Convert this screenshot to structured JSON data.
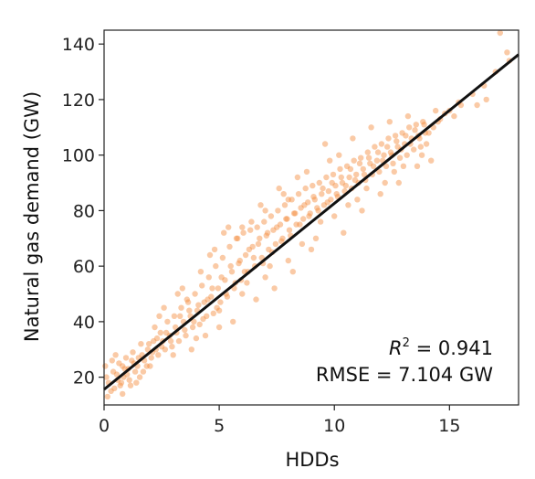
{
  "chart_data": {
    "type": "scatter",
    "title": "",
    "xlabel": "HDDs",
    "ylabel": "Natural gas demand (GW)",
    "xlim": [
      0,
      18
    ],
    "ylim": [
      10,
      145
    ],
    "x_ticks": [
      0,
      5,
      10,
      15
    ],
    "y_ticks": [
      20,
      40,
      60,
      80,
      100,
      120,
      140
    ],
    "grid": false,
    "legend": "none",
    "point_color": "#f5893a",
    "line_color": "#111111",
    "fit_line": {
      "slope": 6.7,
      "intercept": 15.6
    },
    "annotations": {
      "r2_symbol": "R",
      "r2_superscript": "2",
      "r2_value": " = 0.941",
      "rmse": "RMSE = 7.104 GW"
    },
    "points": [
      [
        0.2,
        18
      ],
      [
        0.4,
        22
      ],
      [
        0.6,
        19
      ],
      [
        0.8,
        24
      ],
      [
        1.0,
        21
      ],
      [
        1.2,
        26
      ],
      [
        0.3,
        15
      ],
      [
        0.5,
        28
      ],
      [
        0.1,
        20
      ],
      [
        0.7,
        17
      ],
      [
        0.9,
        23
      ],
      [
        1.1,
        19
      ],
      [
        1.3,
        25
      ],
      [
        1.5,
        27
      ],
      [
        1.7,
        22
      ],
      [
        1.9,
        30
      ],
      [
        2.1,
        29
      ],
      [
        2.3,
        34
      ],
      [
        2.5,
        31
      ],
      [
        2.7,
        36
      ],
      [
        2.9,
        33
      ],
      [
        3.1,
        38
      ],
      [
        3.3,
        42
      ],
      [
        3.5,
        37
      ],
      [
        3.7,
        44
      ],
      [
        3.9,
        40
      ],
      [
        4.1,
        46
      ],
      [
        4.3,
        41
      ],
      [
        4.5,
        48
      ],
      [
        4.7,
        52
      ],
      [
        4.9,
        45
      ],
      [
        5.1,
        56
      ],
      [
        5.3,
        50
      ],
      [
        5.5,
        60
      ],
      [
        5.7,
        54
      ],
      [
        5.9,
        62
      ],
      [
        6.1,
        58
      ],
      [
        6.3,
        66
      ],
      [
        6.5,
        63
      ],
      [
        6.7,
        68
      ],
      [
        6.9,
        61
      ],
      [
        7.1,
        72
      ],
      [
        7.3,
        65
      ],
      [
        7.5,
        74
      ],
      [
        7.7,
        69
      ],
      [
        7.9,
        77
      ],
      [
        8.1,
        71
      ],
      [
        8.3,
        79
      ],
      [
        8.5,
        75
      ],
      [
        8.7,
        82
      ],
      [
        8.9,
        78
      ],
      [
        9.1,
        85
      ],
      [
        9.3,
        80
      ],
      [
        9.5,
        88
      ],
      [
        9.7,
        83
      ],
      [
        9.9,
        90
      ],
      [
        10.1,
        86
      ],
      [
        10.3,
        92
      ],
      [
        10.5,
        89
      ],
      [
        10.7,
        95
      ],
      [
        10.9,
        91
      ],
      [
        11.1,
        97
      ],
      [
        11.3,
        93
      ],
      [
        11.5,
        99
      ],
      [
        11.7,
        96
      ],
      [
        11.9,
        101
      ],
      [
        12.1,
        98
      ],
      [
        12.3,
        103
      ],
      [
        12.5,
        100
      ],
      [
        12.7,
        105
      ],
      [
        12.9,
        102
      ],
      [
        13.1,
        107
      ],
      [
        13.3,
        104
      ],
      [
        13.5,
        109
      ],
      [
        13.7,
        106
      ],
      [
        13.9,
        111
      ],
      [
        14.1,
        108
      ],
      [
        14.5,
        112
      ],
      [
        15.0,
        116
      ],
      [
        15.5,
        118
      ],
      [
        16.0,
        122
      ],
      [
        16.5,
        125
      ],
      [
        17.0,
        130
      ],
      [
        17.5,
        137
      ],
      [
        17.2,
        144
      ],
      [
        5.2,
        72
      ],
      [
        6.0,
        74
      ],
      [
        4.8,
        66
      ],
      [
        7.6,
        88
      ],
      [
        8.4,
        92
      ],
      [
        3.4,
        52
      ],
      [
        2.6,
        45
      ],
      [
        6.6,
        48
      ],
      [
        7.4,
        52
      ],
      [
        8.2,
        58
      ],
      [
        9.0,
        66
      ],
      [
        5.6,
        40
      ],
      [
        4.4,
        35
      ],
      [
        10.4,
        72
      ],
      [
        11.2,
        80
      ],
      [
        12.0,
        86
      ],
      [
        12.8,
        90
      ],
      [
        13.6,
        96
      ],
      [
        14.2,
        98
      ],
      [
        9.6,
        104
      ],
      [
        10.8,
        106
      ],
      [
        11.6,
        110
      ],
      [
        12.4,
        112
      ],
      [
        13.2,
        114
      ],
      [
        7.0,
        80
      ],
      [
        8.0,
        84
      ],
      [
        6.4,
        76
      ],
      [
        5.8,
        70
      ],
      [
        4.2,
        58
      ],
      [
        3.6,
        48
      ],
      [
        2.2,
        38
      ],
      [
        1.6,
        32
      ],
      [
        1.4,
        18
      ],
      [
        0.8,
        14
      ],
      [
        2.0,
        24
      ],
      [
        3.0,
        28
      ],
      [
        4.0,
        34
      ],
      [
        5.0,
        44
      ],
      [
        6.2,
        54
      ],
      [
        7.2,
        60
      ],
      [
        8.6,
        68
      ],
      [
        9.4,
        76
      ],
      [
        10.6,
        82
      ],
      [
        11.4,
        88
      ],
      [
        12.6,
        94
      ],
      [
        13.8,
        100
      ],
      [
        14.0,
        104
      ],
      [
        14.4,
        116
      ],
      [
        15.2,
        114
      ],
      [
        16.2,
        118
      ],
      [
        17.6,
        134
      ],
      [
        0.05,
        24
      ],
      [
        0.15,
        13
      ],
      [
        0.35,
        26
      ],
      [
        0.45,
        16
      ],
      [
        0.55,
        21
      ],
      [
        0.65,
        25
      ],
      [
        0.75,
        18
      ],
      [
        0.85,
        20
      ],
      [
        0.95,
        27
      ],
      [
        1.05,
        23
      ],
      [
        1.15,
        17
      ],
      [
        1.25,
        29
      ],
      [
        1.35,
        22
      ],
      [
        1.45,
        24
      ],
      [
        1.55,
        20
      ],
      [
        1.65,
        28
      ],
      [
        1.75,
        26
      ],
      [
        1.85,
        24
      ],
      [
        1.95,
        32
      ],
      [
        2.05,
        27
      ],
      [
        2.15,
        33
      ],
      [
        2.25,
        30
      ],
      [
        2.35,
        28
      ],
      [
        2.45,
        36
      ],
      [
        2.55,
        33
      ],
      [
        2.65,
        30
      ],
      [
        2.75,
        40
      ],
      [
        2.85,
        35
      ],
      [
        2.95,
        31
      ],
      [
        3.05,
        42
      ],
      [
        3.15,
        36
      ],
      [
        3.25,
        33
      ],
      [
        3.35,
        45
      ],
      [
        3.45,
        40
      ],
      [
        3.55,
        35
      ],
      [
        3.65,
        47
      ],
      [
        3.75,
        42
      ],
      [
        3.85,
        38
      ],
      [
        3.95,
        50
      ],
      [
        4.05,
        44
      ],
      [
        4.15,
        39
      ],
      [
        4.25,
        53
      ],
      [
        4.35,
        47
      ],
      [
        4.45,
        42
      ],
      [
        4.55,
        56
      ],
      [
        4.65,
        49
      ],
      [
        4.75,
        43
      ],
      [
        4.85,
        60
      ],
      [
        4.95,
        52
      ],
      [
        5.05,
        47
      ],
      [
        5.15,
        63
      ],
      [
        5.25,
        55
      ],
      [
        5.35,
        49
      ],
      [
        5.45,
        67
      ],
      [
        5.55,
        58
      ],
      [
        5.65,
        52
      ],
      [
        5.75,
        70
      ],
      [
        5.85,
        61
      ],
      [
        5.95,
        55
      ],
      [
        6.05,
        72
      ],
      [
        6.15,
        64
      ],
      [
        6.25,
        58
      ],
      [
        6.35,
        73
      ],
      [
        6.45,
        67
      ],
      [
        6.55,
        60
      ],
      [
        6.65,
        74
      ],
      [
        6.75,
        70
      ],
      [
        6.85,
        63
      ],
      [
        6.95,
        76
      ],
      [
        7.05,
        71
      ],
      [
        7.15,
        66
      ],
      [
        7.25,
        78
      ],
      [
        7.35,
        73
      ],
      [
        7.45,
        68
      ],
      [
        7.55,
        80
      ],
      [
        7.65,
        75
      ],
      [
        7.75,
        70
      ],
      [
        7.85,
        82
      ],
      [
        7.95,
        77
      ],
      [
        8.05,
        73
      ],
      [
        8.15,
        84
      ],
      [
        8.25,
        79
      ],
      [
        8.35,
        75
      ],
      [
        8.45,
        86
      ],
      [
        8.55,
        81
      ],
      [
        8.65,
        77
      ],
      [
        8.75,
        88
      ],
      [
        8.85,
        83
      ],
      [
        8.95,
        79
      ],
      [
        9.05,
        89
      ],
      [
        9.15,
        84
      ],
      [
        9.25,
        81
      ],
      [
        9.35,
        90
      ],
      [
        9.45,
        86
      ],
      [
        9.55,
        82
      ],
      [
        9.65,
        92
      ],
      [
        9.75,
        87
      ],
      [
        9.85,
        84
      ],
      [
        9.95,
        93
      ],
      [
        10.05,
        89
      ],
      [
        10.15,
        85
      ],
      [
        10.25,
        95
      ],
      [
        10.35,
        90
      ],
      [
        10.45,
        87
      ],
      [
        10.55,
        96
      ],
      [
        10.65,
        92
      ],
      [
        10.75,
        88
      ],
      [
        10.85,
        98
      ],
      [
        10.95,
        93
      ],
      [
        11.05,
        90
      ],
      [
        11.15,
        99
      ],
      [
        11.25,
        95
      ],
      [
        11.35,
        91
      ],
      [
        11.45,
        101
      ],
      [
        11.55,
        97
      ],
      [
        11.65,
        93
      ],
      [
        11.75,
        103
      ],
      [
        11.85,
        98
      ],
      [
        11.95,
        94
      ],
      [
        12.05,
        104
      ],
      [
        12.15,
        100
      ],
      [
        12.25,
        96
      ],
      [
        12.35,
        106
      ],
      [
        12.45,
        101
      ],
      [
        12.55,
        97
      ],
      [
        12.65,
        107
      ],
      [
        12.75,
        103
      ],
      [
        12.85,
        99
      ],
      [
        12.95,
        108
      ],
      [
        13.05,
        104
      ],
      [
        13.15,
        100
      ],
      [
        13.25,
        110
      ],
      [
        13.35,
        106
      ],
      [
        13.45,
        102
      ],
      [
        13.55,
        111
      ],
      [
        13.65,
        107
      ],
      [
        13.75,
        103
      ],
      [
        13.85,
        112
      ],
      [
        13.95,
        108
      ],
      [
        14.3,
        110
      ],
      [
        14.6,
        113
      ],
      [
        14.8,
        115
      ],
      [
        15.4,
        119
      ],
      [
        16.6,
        120
      ],
      [
        6.8,
        82
      ],
      [
        7.8,
        86
      ],
      [
        5.4,
        74
      ],
      [
        8.8,
        94
      ],
      [
        9.8,
        98
      ],
      [
        10.2,
        100
      ],
      [
        4.6,
        64
      ],
      [
        3.2,
        50
      ],
      [
        2.4,
        42
      ],
      [
        7.0,
        56
      ],
      [
        8.0,
        62
      ],
      [
        9.2,
        70
      ],
      [
        10.0,
        78
      ],
      [
        11.0,
        84
      ],
      [
        6.0,
        50
      ],
      [
        5.0,
        38
      ],
      [
        3.8,
        30
      ],
      [
        12.2,
        90
      ],
      [
        13.0,
        96
      ]
    ]
  }
}
